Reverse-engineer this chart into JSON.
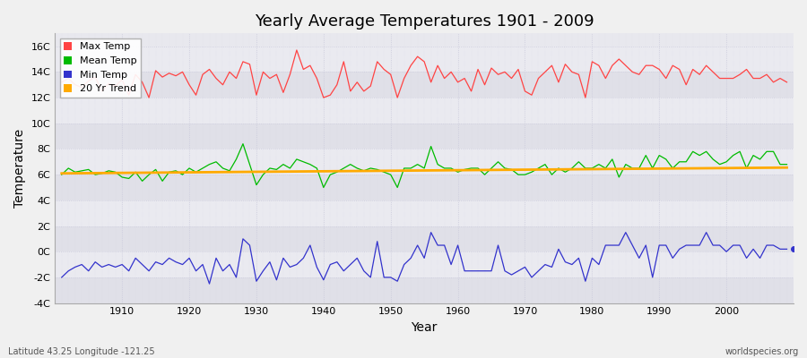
{
  "title": "Yearly Average Temperatures 1901 - 2009",
  "xlabel": "Year",
  "ylabel": "Temperature",
  "lat_lon_label": "Latitude 43.25 Longitude -121.25",
  "watermark": "worldspecies.org",
  "years_start": 1901,
  "years_end": 2009,
  "ylim": [
    -4,
    17
  ],
  "yticks": [
    -4,
    -2,
    0,
    2,
    4,
    6,
    8,
    10,
    12,
    14,
    16
  ],
  "ytick_labels": [
    "-4C",
    "-2C",
    "0C",
    "2C",
    "4C",
    "6C",
    "8C",
    "10C",
    "12C",
    "14C",
    "16C"
  ],
  "fig_bg_color": "#f0f0f0",
  "plot_bg_color": "#e8e8ee",
  "band_color_1": "#e0e0e8",
  "band_color_2": "#eaeaf0",
  "grid_color": "#ccccdd",
  "max_temp_color": "#ff4444",
  "mean_temp_color": "#00bb00",
  "min_temp_color": "#3333cc",
  "trend_color": "#ffaa00",
  "dot_color": "#3333cc",
  "legend_labels": [
    "Max Temp",
    "Mean Temp",
    "Min Temp",
    "20 Yr Trend"
  ],
  "max_temps": [
    13.2,
    13.5,
    13.0,
    12.8,
    13.3,
    13.6,
    12.5,
    13.1,
    12.9,
    13.4,
    12.2,
    13.8,
    13.2,
    12.0,
    14.1,
    13.6,
    13.9,
    13.7,
    14.0,
    13.0,
    12.2,
    13.8,
    14.2,
    13.5,
    13.0,
    14.0,
    13.5,
    14.8,
    14.6,
    12.2,
    14.0,
    13.5,
    13.8,
    12.4,
    13.8,
    15.7,
    14.2,
    14.5,
    13.5,
    12.0,
    12.2,
    13.0,
    14.8,
    12.5,
    13.2,
    12.5,
    12.9,
    14.8,
    14.2,
    13.8,
    12.0,
    13.5,
    14.5,
    15.2,
    14.8,
    13.2,
    14.5,
    13.5,
    14.0,
    13.2,
    13.5,
    12.5,
    14.2,
    13.0,
    14.3,
    13.8,
    14.0,
    13.5,
    14.2,
    12.5,
    12.2,
    13.5,
    14.0,
    14.5,
    13.2,
    14.6,
    14.0,
    13.8,
    12.0,
    14.8,
    14.5,
    13.5,
    14.5,
    15.0,
    14.5,
    14.0,
    13.8,
    14.5,
    14.5,
    14.2,
    13.5,
    14.5,
    14.2,
    13.0,
    14.2,
    13.8,
    14.5,
    14.0,
    13.5,
    13.5,
    13.5,
    13.8,
    14.2,
    13.5,
    13.5,
    13.8,
    13.2,
    13.5,
    13.2
  ],
  "mean_temps": [
    6.0,
    6.5,
    6.2,
    6.3,
    6.4,
    6.0,
    6.1,
    6.3,
    6.2,
    5.8,
    5.7,
    6.2,
    5.5,
    6.0,
    6.4,
    5.5,
    6.2,
    6.3,
    6.0,
    6.5,
    6.2,
    6.5,
    6.8,
    7.0,
    6.5,
    6.3,
    7.2,
    8.4,
    6.8,
    5.2,
    6.0,
    6.5,
    6.4,
    6.8,
    6.5,
    7.2,
    7.0,
    6.8,
    6.5,
    5.0,
    6.0,
    6.2,
    6.5,
    6.8,
    6.5,
    6.3,
    6.5,
    6.4,
    6.2,
    6.0,
    5.0,
    6.5,
    6.5,
    6.8,
    6.5,
    8.2,
    6.8,
    6.5,
    6.5,
    6.2,
    6.4,
    6.5,
    6.5,
    6.0,
    6.5,
    7.0,
    6.5,
    6.4,
    6.0,
    6.0,
    6.2,
    6.5,
    6.8,
    6.0,
    6.5,
    6.2,
    6.5,
    7.0,
    6.5,
    6.5,
    6.8,
    6.5,
    7.2,
    5.8,
    6.8,
    6.5,
    6.5,
    7.5,
    6.5,
    7.5,
    7.2,
    6.5,
    7.0,
    7.0,
    7.8,
    7.5,
    7.8,
    7.2,
    6.8,
    7.0,
    7.5,
    7.8,
    6.5,
    7.5,
    7.2,
    7.8,
    7.8,
    6.8,
    6.8
  ],
  "min_temps": [
    -2.0,
    -1.5,
    -1.2,
    -1.0,
    -1.5,
    -0.8,
    -1.2,
    -1.0,
    -1.2,
    -1.0,
    -1.5,
    -0.5,
    -1.0,
    -1.5,
    -0.8,
    -1.0,
    -0.5,
    -0.8,
    -1.0,
    -0.5,
    -1.5,
    -1.0,
    -2.5,
    -0.5,
    -1.5,
    -1.0,
    -2.0,
    1.0,
    0.5,
    -2.3,
    -1.5,
    -0.8,
    -2.2,
    -0.5,
    -1.2,
    -1.0,
    -0.5,
    0.5,
    -1.2,
    -2.2,
    -1.0,
    -0.8,
    -1.5,
    -1.0,
    -0.5,
    -1.5,
    -2.0,
    0.8,
    -2.0,
    -2.0,
    -2.3,
    -1.0,
    -0.5,
    0.5,
    -0.5,
    1.5,
    0.5,
    0.5,
    -1.0,
    0.5,
    -1.5,
    -1.5,
    -1.5,
    -1.5,
    -1.5,
    0.5,
    -1.5,
    -1.8,
    -1.5,
    -1.2,
    -2.0,
    -1.5,
    -1.0,
    -1.2,
    0.2,
    -0.8,
    -1.0,
    -0.5,
    -2.3,
    -0.5,
    -1.0,
    0.5,
    0.5,
    0.5,
    1.5,
    0.5,
    -0.5,
    0.5,
    -2.0,
    0.5,
    0.5,
    -0.5,
    0.2,
    0.5,
    0.5,
    0.5,
    1.5,
    0.5,
    0.5,
    0.0,
    0.5,
    0.5,
    -0.5,
    0.2,
    -0.5,
    0.5,
    0.5,
    0.2,
    0.2
  ],
  "trend_start_val": 6.1,
  "trend_end_val": 6.55,
  "dot_year": 2009,
  "dot_val": 0.2,
  "xtick_start": 1910,
  "xtick_end": 2010,
  "xtick_step": 10
}
